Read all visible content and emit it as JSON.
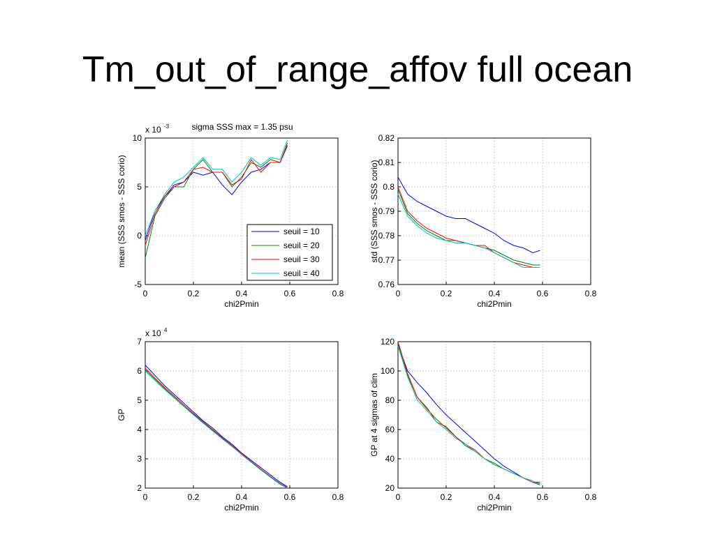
{
  "title": "Tm_out_of_range_affov full ocean",
  "chart_data": [
    {
      "type": "line",
      "subtitle": "sigma SSS max = 1.35 psu",
      "y_multiplier": {
        "base": "x 10",
        "exponent": "-3"
      },
      "xlabel": "chi2Pmin",
      "ylabel": "mean (SSS smos - SSS corio)",
      "xlim": [
        0,
        0.8
      ],
      "xticks": [
        0,
        0.2,
        0.4,
        0.6,
        0.8
      ],
      "ylim": [
        -5,
        10
      ],
      "yticks": [
        -5,
        0,
        5,
        10
      ],
      "grid": true,
      "legend": "lower right",
      "x": [
        0,
        0.04,
        0.08,
        0.12,
        0.16,
        0.2,
        0.24,
        0.28,
        0.32,
        0.36,
        0.4,
        0.44,
        0.48,
        0.52,
        0.56,
        0.59
      ],
      "series": [
        {
          "name": "seuil = 10",
          "color": "#0000ff",
          "values": [
            -0.5,
            2.5,
            4,
            5.2,
            5.5,
            6.5,
            6.2,
            6.5,
            5.2,
            4.2,
            5.5,
            6.5,
            6.8,
            7.5,
            7.5,
            9.2
          ]
        },
        {
          "name": "seuil = 20",
          "color": "#008000",
          "values": [
            -2.3,
            2,
            3.8,
            5,
            5,
            6.8,
            7.8,
            6.5,
            6.5,
            5,
            6,
            7.5,
            7,
            7.8,
            7.5,
            9.5
          ]
        },
        {
          "name": "seuil = 30",
          "color": "#ff0000",
          "values": [
            -1,
            2.2,
            4,
            5,
            5.5,
            6.8,
            7,
            6.5,
            6.5,
            5.2,
            5.8,
            7.8,
            6.5,
            7.5,
            7.5,
            9.3
          ]
        },
        {
          "name": "seuil = 40",
          "color": "#00bfbf",
          "values": [
            0,
            2.5,
            4.2,
            5.5,
            6,
            7,
            8,
            6.8,
            6.8,
            5.5,
            6.5,
            8,
            7.2,
            8,
            7.8,
            9.8
          ]
        }
      ]
    },
    {
      "type": "line",
      "xlabel": "chi2Pmin",
      "ylabel": "std (SSS smos - SSS corio)",
      "xlim": [
        0,
        0.8
      ],
      "xticks": [
        0,
        0.2,
        0.4,
        0.6,
        0.8
      ],
      "ylim": [
        0.76,
        0.82
      ],
      "yticks": [
        0.76,
        0.77,
        0.78,
        0.79,
        0.8,
        0.81,
        0.82
      ],
      "grid": true,
      "x": [
        0,
        0.04,
        0.08,
        0.12,
        0.16,
        0.2,
        0.24,
        0.28,
        0.32,
        0.36,
        0.4,
        0.44,
        0.48,
        0.52,
        0.56,
        0.59
      ],
      "series": [
        {
          "color": "#0000ff",
          "values": [
            0.804,
            0.797,
            0.794,
            0.792,
            0.79,
            0.788,
            0.787,
            0.787,
            0.785,
            0.783,
            0.781,
            0.778,
            0.776,
            0.775,
            0.773,
            0.774
          ]
        },
        {
          "color": "#008000",
          "values": [
            0.799,
            0.789,
            0.785,
            0.782,
            0.78,
            0.778,
            0.778,
            0.777,
            0.776,
            0.775,
            0.774,
            0.772,
            0.77,
            0.769,
            0.768,
            0.768
          ]
        },
        {
          "color": "#ff0000",
          "values": [
            0.8,
            0.79,
            0.786,
            0.783,
            0.781,
            0.779,
            0.778,
            0.777,
            0.776,
            0.776,
            0.773,
            0.771,
            0.769,
            0.768,
            0.767,
            0.767
          ]
        },
        {
          "color": "#00bfbf",
          "values": [
            0.797,
            0.788,
            0.784,
            0.781,
            0.779,
            0.778,
            0.777,
            0.777,
            0.776,
            0.775,
            0.773,
            0.771,
            0.769,
            0.767,
            0.767,
            0.767
          ]
        }
      ]
    },
    {
      "type": "line",
      "y_multiplier": {
        "base": "x 10",
        "exponent": "4"
      },
      "xlabel": "chi2Pmin",
      "ylabel": "GP",
      "xlim": [
        0,
        0.8
      ],
      "xticks": [
        0,
        0.2,
        0.4,
        0.6,
        0.8
      ],
      "ylim": [
        2,
        7
      ],
      "yticks": [
        2,
        3,
        4,
        5,
        6,
        7
      ],
      "grid": true,
      "x": [
        0,
        0.04,
        0.08,
        0.12,
        0.16,
        0.2,
        0.24,
        0.28,
        0.32,
        0.36,
        0.4,
        0.44,
        0.48,
        0.52,
        0.56,
        0.59
      ],
      "series": [
        {
          "color": "#0000ff",
          "values": [
            6.2,
            5.85,
            5.5,
            5.2,
            4.9,
            4.6,
            4.3,
            4.05,
            3.75,
            3.5,
            3.2,
            2.95,
            2.7,
            2.45,
            2.2,
            2.05
          ]
        },
        {
          "color": "#008000",
          "values": [
            6.05,
            5.72,
            5.4,
            5.1,
            4.8,
            4.52,
            4.24,
            3.97,
            3.7,
            3.43,
            3.15,
            2.88,
            2.62,
            2.37,
            2.13,
            2.0
          ]
        },
        {
          "color": "#ff0000",
          "values": [
            6.1,
            5.76,
            5.44,
            5.14,
            4.84,
            4.55,
            4.27,
            4.0,
            3.72,
            3.46,
            3.18,
            2.91,
            2.65,
            2.4,
            2.16,
            2.02
          ]
        },
        {
          "color": "#00bfbf",
          "values": [
            6.0,
            5.68,
            5.37,
            5.08,
            4.79,
            4.5,
            4.22,
            3.95,
            3.68,
            3.42,
            3.15,
            2.88,
            2.62,
            2.38,
            2.14,
            2.0
          ]
        }
      ]
    },
    {
      "type": "line",
      "xlabel": "chi2Pmin",
      "ylabel": "GP at 4 sigmas of clim",
      "xlim": [
        0,
        0.8
      ],
      "xticks": [
        0,
        0.2,
        0.4,
        0.6,
        0.8
      ],
      "ylim": [
        20,
        120
      ],
      "yticks": [
        20,
        40,
        60,
        80,
        100,
        120
      ],
      "grid": true,
      "x": [
        0,
        0.04,
        0.08,
        0.12,
        0.16,
        0.2,
        0.24,
        0.28,
        0.32,
        0.36,
        0.4,
        0.44,
        0.48,
        0.52,
        0.56,
        0.59
      ],
      "series": [
        {
          "color": "#0000ff",
          "values": [
            118,
            100,
            92,
            85,
            77,
            70,
            64,
            58,
            52,
            46,
            40,
            35,
            31,
            27,
            24,
            24
          ]
        },
        {
          "color": "#008000",
          "values": [
            119,
            97,
            82,
            74,
            67,
            61,
            55,
            49,
            45,
            40,
            37,
            33,
            30,
            27,
            24,
            22
          ]
        },
        {
          "color": "#ff0000",
          "values": [
            120,
            98,
            82,
            75,
            65,
            62,
            55,
            50,
            46,
            40,
            36,
            33,
            30,
            27,
            24,
            23
          ]
        },
        {
          "color": "#00bfbf",
          "values": [
            117,
            96,
            80,
            73,
            65,
            60,
            54,
            50,
            45,
            40,
            36,
            33,
            30,
            27,
            25,
            22
          ]
        }
      ]
    }
  ]
}
